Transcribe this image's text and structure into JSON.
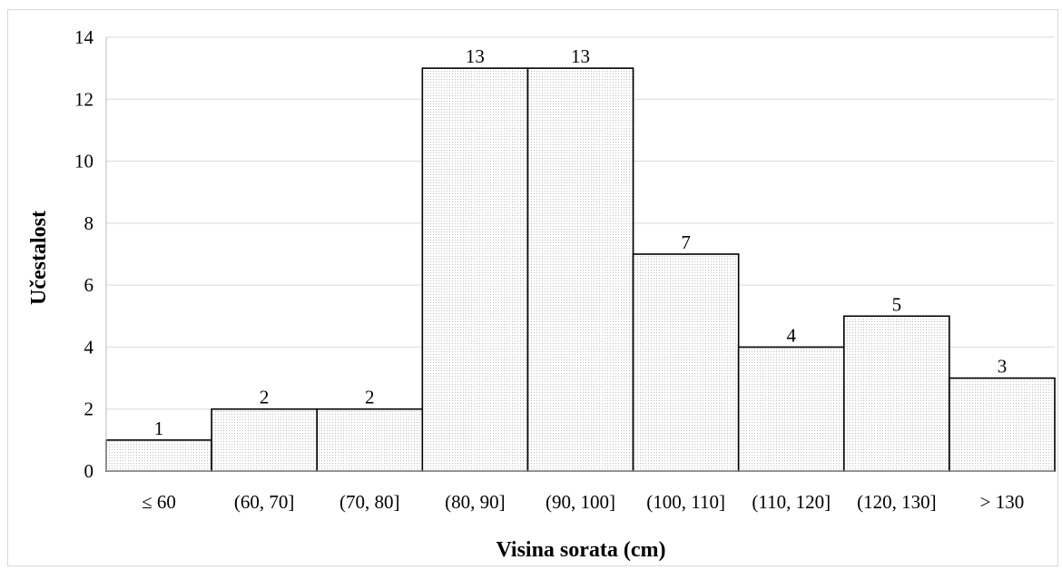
{
  "chart_data": {
    "type": "bar",
    "title": "",
    "xlabel": "Visina sorata (cm)",
    "ylabel": "Učestalost",
    "categories": [
      "≤ 60",
      "(60, 70]",
      "(70, 80]",
      "(80, 90]",
      "(90, 100]",
      "(100, 110]",
      "(110, 120]",
      "(120, 130]",
      "> 130"
    ],
    "values": [
      1,
      2,
      2,
      13,
      13,
      7,
      4,
      5,
      3
    ],
    "data_labels": [
      "1",
      "2",
      "2",
      "13",
      "13",
      "7",
      "4",
      "5",
      "3"
    ],
    "ylim": [
      0,
      14
    ],
    "yticks": [
      "0",
      "2",
      "4",
      "6",
      "8",
      "10",
      "12",
      "14"
    ],
    "grid": true,
    "legend": "none",
    "bar_fill": "#f4f4f4",
    "bar_stroke": "#000000",
    "grid_color": "#d9d9d9",
    "axis_color": "#bfbfbf"
  }
}
